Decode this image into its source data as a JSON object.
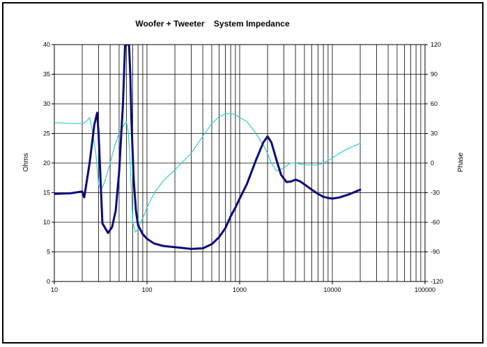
{
  "chart_data": {
    "type": "line",
    "title": "Woofer + Tweeter    System Impedance",
    "xlabel": "",
    "ylabel": "Ohms",
    "y2label": "Phase",
    "xscale": "log",
    "xlim": [
      10,
      100000
    ],
    "ylim": [
      0,
      40
    ],
    "y2lim": [
      -120,
      120
    ],
    "grid": true,
    "x_ticks": [
      "10",
      "100",
      "1000",
      "10000",
      "100000"
    ],
    "y_ticks": [
      "0",
      "5",
      "10",
      "15",
      "20",
      "25",
      "30",
      "35",
      "40"
    ],
    "y2_ticks": [
      "-120",
      "-90",
      "-60",
      "-30",
      "0",
      "30",
      "60",
      "90",
      "120"
    ],
    "series": [
      {
        "axis": "left",
        "color": "#0a0a7a",
        "x": [
          10,
          15,
          20,
          21,
          24,
          27,
          29,
          30,
          33,
          38,
          42,
          46,
          50,
          55,
          58,
          60,
          62,
          64,
          66,
          68,
          72,
          76,
          80,
          90,
          100,
          120,
          150,
          200,
          300,
          400,
          500,
          600,
          700,
          800,
          900,
          1000,
          1200,
          1500,
          1800,
          2000,
          2200,
          2500,
          2800,
          3200,
          3600,
          4000,
          4500,
          5000,
          6000,
          7000,
          8000,
          9000,
          10000,
          12000,
          15000,
          20000
        ],
        "y": [
          14.8,
          14.9,
          15.2,
          14.2,
          20.0,
          26.5,
          28.5,
          25.0,
          9.8,
          8.2,
          9.2,
          12.0,
          18.5,
          30.0,
          40.0,
          40.0,
          40.0,
          40.0,
          35.0,
          27.0,
          17.0,
          12.0,
          9.5,
          8.0,
          7.2,
          6.4,
          6.0,
          5.8,
          5.5,
          5.6,
          6.3,
          7.5,
          9.0,
          11.0,
          12.5,
          14.0,
          16.5,
          20.5,
          23.5,
          24.5,
          23.5,
          20.5,
          18.0,
          16.8,
          16.9,
          17.2,
          16.9,
          16.4,
          15.5,
          14.8,
          14.3,
          14.1,
          14.0,
          14.2,
          14.7,
          15.5
        ]
      },
      {
        "axis": "right",
        "color": "#33cccc",
        "x": [
          10,
          15,
          20,
          22,
          24,
          26,
          28,
          30,
          33,
          36,
          40,
          45,
          50,
          55,
          60,
          63,
          66,
          70,
          75,
          80,
          85,
          90,
          100,
          120,
          150,
          200,
          300,
          400,
          500,
          600,
          700,
          800,
          900,
          1000,
          1200,
          1500,
          1800,
          2000,
          2200,
          2500,
          3000,
          3500,
          4000,
          5000,
          6000,
          7000,
          8000,
          10000,
          12000,
          15000,
          20000
        ],
        "y": [
          41,
          40,
          40,
          42,
          46,
          30,
          10,
          -22,
          -25,
          -15,
          0,
          18,
          30,
          37,
          42,
          30,
          0,
          -60,
          -70,
          -67,
          -60,
          -56,
          -45,
          -30,
          -18,
          -7,
          10,
          27,
          40,
          47,
          50,
          50,
          49,
          46,
          42,
          30,
          18,
          10,
          0,
          -8,
          -5,
          0,
          0,
          -2,
          -2,
          -2,
          0,
          5,
          10,
          15,
          20
        ]
      }
    ]
  }
}
